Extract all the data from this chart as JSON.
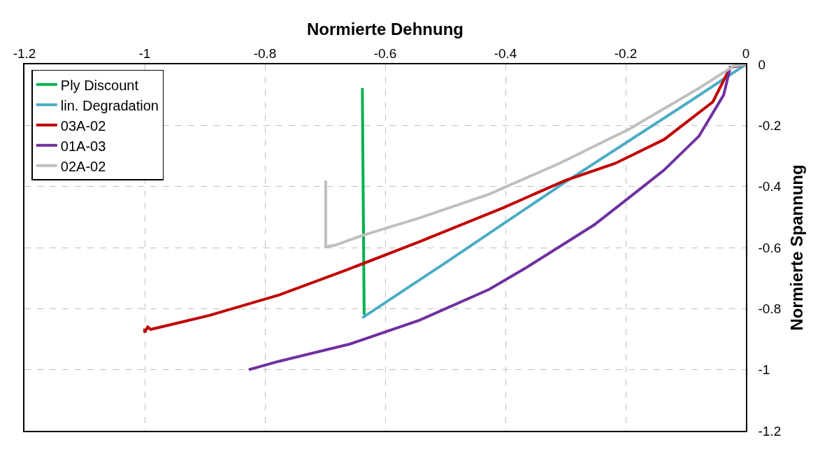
{
  "chart_data": {
    "type": "line",
    "xlabel": "Normierte Dehnung",
    "ylabel": "Normierte Spannung",
    "xlim": [
      -1.2,
      0
    ],
    "ylim": [
      -1.2,
      0
    ],
    "xticks": [
      -1.2,
      -1,
      -0.8,
      -0.6,
      -0.4,
      -0.2,
      0
    ],
    "yticks": [
      -1.2,
      -1,
      -0.8,
      -0.6,
      -0.4,
      -0.2,
      0
    ],
    "grid": true,
    "legend": "top left",
    "line_style": "solid",
    "marker": "none",
    "series": [
      {
        "name": "Ply Discount",
        "color": "#00b050",
        "x": [
          -0.638,
          -0.635
        ],
        "values": [
          -0.078,
          -0.82
        ]
      },
      {
        "name": "lin. Degradation",
        "color": "#4bacc6",
        "x": [
          0,
          -0.1,
          -0.3,
          -0.5,
          -0.638
        ],
        "values": [
          0,
          -0.13,
          -0.385,
          -0.65,
          -0.83
        ]
      },
      {
        "name": "03A-02",
        "color": "#c00000",
        "x": [
          0,
          -0.026,
          -0.055,
          -0.136,
          -0.217,
          -0.3,
          -0.403,
          -0.543,
          -0.66,
          -0.776,
          -0.892,
          -0.99,
          -0.995,
          -1.0,
          -1.0
        ],
        "values": [
          0,
          -0.01,
          -0.123,
          -0.246,
          -0.324,
          -0.38,
          -0.469,
          -0.581,
          -0.67,
          -0.755,
          -0.822,
          -0.868,
          -0.86,
          -0.878,
          -0.865
        ]
      },
      {
        "name": "01A-03",
        "color": "#7030a0",
        "x": [
          0,
          -0.026,
          -0.037,
          -0.078,
          -0.136,
          -0.194,
          -0.252,
          -0.31,
          -0.369,
          -0.427,
          -0.543,
          -0.659,
          -0.776,
          -0.827
        ],
        "values": [
          0,
          -0.01,
          -0.1,
          -0.235,
          -0.346,
          -0.436,
          -0.525,
          -0.597,
          -0.67,
          -0.737,
          -0.838,
          -0.916,
          -0.972,
          -1.0
        ]
      },
      {
        "name": "02A-02",
        "color": "#bfbfbf",
        "x": [
          0,
          -0.02,
          -0.078,
          -0.194,
          -0.31,
          -0.427,
          -0.543,
          -0.636,
          -0.683,
          -0.699,
          -0.699
        ],
        "values": [
          0,
          -0.005,
          -0.078,
          -0.212,
          -0.324,
          -0.425,
          -0.503,
          -0.559,
          -0.592,
          -0.597,
          -0.38
        ]
      }
    ]
  }
}
